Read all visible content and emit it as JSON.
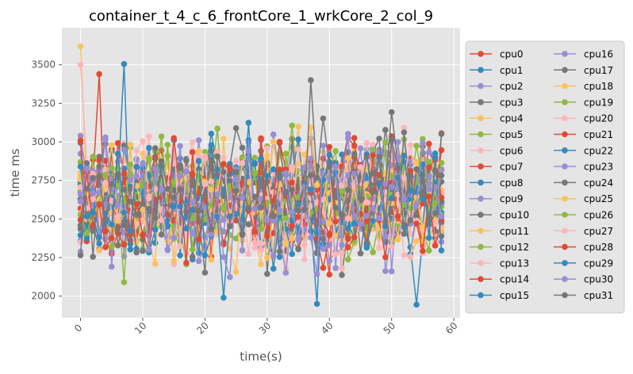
{
  "chart_data": {
    "type": "line",
    "title": "container_t_4_c_6_frontCore_1_wrkCore_2_col_9",
    "xlabel": "time(s)",
    "ylabel": "time ms",
    "xlim": [
      -3,
      61
    ],
    "ylim": [
      1860,
      3740
    ],
    "x_ticks": [
      0,
      10,
      20,
      30,
      40,
      50,
      60
    ],
    "y_ticks": [
      2000,
      2250,
      2500,
      2750,
      3000,
      3250,
      3500
    ],
    "grid": true,
    "legend_position": "right-outside",
    "legend_columns": 2,
    "x": [
      0,
      1,
      2,
      3,
      4,
      5,
      6,
      7,
      8,
      9,
      10,
      11,
      12,
      13,
      14,
      15,
      16,
      17,
      18,
      19,
      20,
      21,
      22,
      23,
      24,
      25,
      26,
      27,
      28,
      29,
      30,
      31,
      32,
      33,
      34,
      35,
      36,
      37,
      38,
      39,
      40,
      41,
      42,
      43,
      44,
      45,
      46,
      47,
      48,
      49,
      50,
      51,
      52,
      53,
      54,
      55,
      56,
      57,
      58
    ],
    "series_names": [
      "cpu0",
      "cpu1",
      "cpu2",
      "cpu3",
      "cpu4",
      "cpu5",
      "cpu6",
      "cpu7",
      "cpu8",
      "cpu9",
      "cpu10",
      "cpu11",
      "cpu12",
      "cpu13",
      "cpu14",
      "cpu15",
      "cpu16",
      "cpu17",
      "cpu18",
      "cpu19",
      "cpu20",
      "cpu21",
      "cpu22",
      "cpu23",
      "cpu24",
      "cpu25",
      "cpu26",
      "cpu27",
      "cpu28",
      "cpu29",
      "cpu30",
      "cpu31"
    ],
    "palette": [
      "#E24A33",
      "#348ABD",
      "#988ED5",
      "#777777",
      "#FBC15E",
      "#8EBA42",
      "#FFB5B8"
    ],
    "series_count": 32,
    "points_per_series": 59,
    "value_range_note": "",
    "highlights": [
      {
        "series": "cpu4",
        "x": 0,
        "y": 3620
      },
      {
        "series": "cpu6",
        "x": 0,
        "y": 3500
      },
      {
        "series": "cpu8",
        "x": 7,
        "y": 3505
      },
      {
        "series": "cpu7",
        "x": 3,
        "y": 3440
      },
      {
        "series": "cpu31",
        "x": 37,
        "y": 3400
      },
      {
        "series": "cpu15",
        "x": 38,
        "y": 1950
      },
      {
        "series": "cpu29",
        "x": 23,
        "y": 1990
      },
      {
        "series": "cpu12",
        "x": 7,
        "y": 2090
      },
      {
        "series": "cpu1",
        "x": 54,
        "y": 1945
      }
    ]
  }
}
